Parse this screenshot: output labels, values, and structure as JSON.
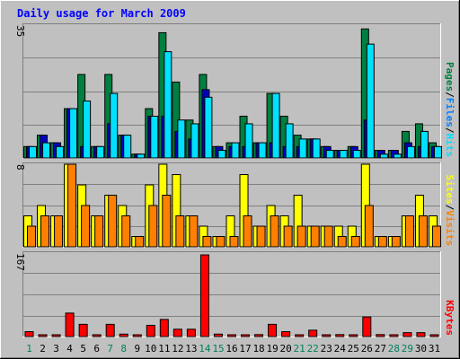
{
  "title": "Daily usage for March 2009",
  "colors": {
    "background": "#C0C0C0",
    "title": "#0000FF",
    "hits": "#008040",
    "files": "#0080FF",
    "pages": "#00E0FF",
    "visits": "#FFFF00",
    "sites": "#FF8000",
    "kbytes": "#FF0000",
    "weekend_label": "#00805C",
    "weekday_label": "#000000"
  },
  "chart_data": [
    {
      "type": "bar",
      "title": "Daily usage for March 2009",
      "panel": "hits-files-pages",
      "ymax": 35,
      "ytick_label": "35",
      "right_labels": [
        "Pages",
        "Files",
        "Hits"
      ],
      "categories": [
        "1",
        "2",
        "3",
        "4",
        "5",
        "6",
        "7",
        "8",
        "9",
        "10",
        "11",
        "12",
        "13",
        "14",
        "15",
        "16",
        "17",
        "18",
        "19",
        "20",
        "21",
        "22",
        "23",
        "24",
        "25",
        "26",
        "27",
        "28",
        "29",
        "30",
        "31"
      ],
      "series": [
        {
          "name": "Hits",
          "values": [
            3,
            6,
            4,
            13,
            22,
            3,
            22,
            6,
            1,
            13,
            33,
            20,
            10,
            22,
            3,
            4,
            11,
            4,
            17,
            11,
            6,
            5,
            3,
            2,
            3,
            34,
            2,
            2,
            7,
            9,
            4
          ]
        },
        {
          "name": "Files",
          "values": [
            3,
            6,
            4,
            13,
            3,
            3,
            9,
            6,
            1,
            11,
            11,
            7,
            5,
            18,
            3,
            3,
            3,
            4,
            4,
            3,
            3,
            5,
            3,
            2,
            3,
            10,
            2,
            2,
            4,
            3,
            3
          ]
        },
        {
          "name": "Pages",
          "values": [
            3,
            4,
            3,
            13,
            15,
            3,
            17,
            6,
            1,
            11,
            28,
            10,
            9,
            16,
            2,
            4,
            9,
            4,
            17,
            9,
            5,
            5,
            2,
            2,
            2,
            30,
            1,
            1,
            3,
            7,
            3
          ]
        }
      ]
    },
    {
      "type": "bar",
      "panel": "visits-sites",
      "ymax": 8,
      "ytick_label": "8",
      "right_labels": [
        "Sites",
        "Visits"
      ],
      "categories": [
        "1",
        "2",
        "3",
        "4",
        "5",
        "6",
        "7",
        "8",
        "9",
        "10",
        "11",
        "12",
        "13",
        "14",
        "15",
        "16",
        "17",
        "18",
        "19",
        "20",
        "21",
        "22",
        "23",
        "24",
        "25",
        "26",
        "27",
        "28",
        "29",
        "30",
        "31"
      ],
      "series": [
        {
          "name": "Visits",
          "values": [
            3,
            4,
            3,
            8,
            6,
            3,
            5,
            4,
            1,
            6,
            8,
            7,
            3,
            2,
            1,
            3,
            7,
            2,
            4,
            3,
            5,
            2,
            2,
            2,
            2,
            8,
            1,
            1,
            3,
            5,
            3
          ]
        },
        {
          "name": "Sites",
          "values": [
            2,
            3,
            3,
            8,
            4,
            3,
            5,
            3,
            1,
            4,
            5,
            3,
            3,
            1,
            1,
            1,
            3,
            2,
            3,
            2,
            2,
            2,
            2,
            1,
            1,
            4,
            1,
            1,
            3,
            3,
            2
          ]
        }
      ]
    },
    {
      "type": "bar",
      "panel": "kbytes",
      "ymax": 167,
      "ytick_label": "167",
      "right_labels": [
        "KBytes"
      ],
      "categories": [
        "1",
        "2",
        "3",
        "4",
        "5",
        "6",
        "7",
        "8",
        "9",
        "10",
        "11",
        "12",
        "13",
        "14",
        "15",
        "16",
        "17",
        "18",
        "19",
        "20",
        "21",
        "22",
        "23",
        "24",
        "25",
        "26",
        "27",
        "28",
        "29",
        "30",
        "31"
      ],
      "series": [
        {
          "name": "KBytes",
          "values": [
            10,
            2,
            2,
            48,
            25,
            2,
            25,
            5,
            2,
            23,
            35,
            15,
            15,
            167,
            5,
            2,
            2,
            4,
            25,
            10,
            2,
            13,
            2,
            4,
            2,
            40,
            4,
            2,
            8,
            8,
            2
          ]
        }
      ]
    }
  ],
  "weekend_days": [
    1,
    7,
    8,
    14,
    15,
    21,
    22,
    28,
    29
  ]
}
